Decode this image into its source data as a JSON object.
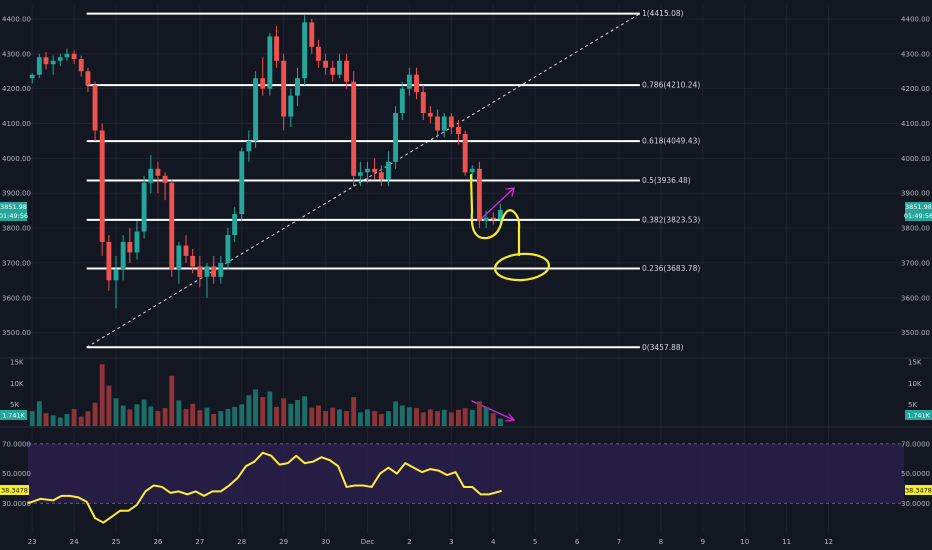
{
  "colors": {
    "background": "#131722",
    "grid": "#1e2230",
    "up": "#26a69a",
    "down": "#ef5350",
    "up_volume": "#1d6e68",
    "down_volume": "#8e3438",
    "fib_line": "#ffffff",
    "rsi_line": "#ffeb3b",
    "rsi_band": "#2a1e4a",
    "annotation_yellow": "#f5eb2a",
    "annotation_magenta": "#d42cd8"
  },
  "price_tag": {
    "price": "3851.98",
    "countdown": "01:49:56"
  },
  "volume_tag": "1.741K",
  "rsi_tag": "38.3478",
  "chart_data": [
    {
      "type": "candlestick",
      "ylim": [
        3430,
        4440
      ],
      "yticks": [
        "4400.00",
        "4300.00",
        "4200.00",
        "4100.00",
        "4000.00",
        "3900.00",
        "3800.00",
        "3700.00",
        "3600.00",
        "3500.00"
      ],
      "ytick_values": [
        4400,
        4300,
        4200,
        4100,
        4000,
        3900,
        3800,
        3700,
        3600,
        3500
      ],
      "xticks": [
        "23",
        "24",
        "25",
        "26",
        "27",
        "28",
        "29",
        "30",
        "Dec",
        "2",
        "3",
        "4",
        "5",
        "6",
        "7",
        "8",
        "9",
        "10",
        "11",
        "12"
      ],
      "xtick_days": [
        23,
        24,
        25,
        26,
        27,
        28,
        29,
        30,
        31,
        32,
        33,
        34,
        35,
        36,
        37,
        38,
        39,
        40,
        41,
        42
      ],
      "x_range_days": [
        22.9,
        43.8
      ],
      "candle_hours": 4,
      "fib_levels": [
        {
          "ratio": 1,
          "price": 4415.08,
          "label": "1(4415.08)"
        },
        {
          "ratio": 0.786,
          "price": 4210.24,
          "label": "0.786(4210.24)"
        },
        {
          "ratio": 0.618,
          "price": 4049.43,
          "label": "0.618(4049.43)"
        },
        {
          "ratio": 0.5,
          "price": 3936.48,
          "label": "0.5(3936.48)"
        },
        {
          "ratio": 0.382,
          "price": 3823.53,
          "label": "0.382(3823.53)"
        },
        {
          "ratio": 0.236,
          "price": 3683.78,
          "label": "0.236(3683.78)"
        },
        {
          "ratio": 0,
          "price": 3457.88,
          "label": "0(3457.88)"
        }
      ],
      "fib_trend": {
        "from": {
          "day": 24.3,
          "price": 3457.88
        },
        "to": {
          "day": 37.5,
          "price": 4415.08
        }
      },
      "candles": [
        [
          23.0,
          4230,
          4245,
          4215,
          4240
        ],
        [
          23.17,
          4240,
          4300,
          4230,
          4290
        ],
        [
          23.33,
          4290,
          4305,
          4255,
          4270
        ],
        [
          23.5,
          4270,
          4295,
          4240,
          4280
        ],
        [
          23.67,
          4280,
          4300,
          4265,
          4290
        ],
        [
          23.83,
          4290,
          4315,
          4280,
          4300
        ],
        [
          24.0,
          4300,
          4310,
          4270,
          4285
        ],
        [
          24.17,
          4285,
          4295,
          4235,
          4250
        ],
        [
          24.33,
          4250,
          4260,
          4190,
          4210
        ],
        [
          24.5,
          4210,
          4220,
          4050,
          4080
        ],
        [
          24.67,
          4080,
          4100,
          3720,
          3760
        ],
        [
          24.83,
          3760,
          3780,
          3620,
          3650
        ],
        [
          25.0,
          3650,
          3720,
          3570,
          3680
        ],
        [
          25.17,
          3680,
          3780,
          3650,
          3760
        ],
        [
          25.33,
          3760,
          3800,
          3700,
          3730
        ],
        [
          25.5,
          3730,
          3820,
          3710,
          3790
        ],
        [
          25.67,
          3790,
          3950,
          3770,
          3930
        ],
        [
          25.83,
          3930,
          4010,
          3900,
          3970
        ],
        [
          26.0,
          3970,
          3990,
          3900,
          3950
        ],
        [
          26.17,
          3950,
          3960,
          3880,
          3930
        ],
        [
          26.33,
          3930,
          3940,
          3660,
          3680
        ],
        [
          26.5,
          3680,
          3760,
          3640,
          3750
        ],
        [
          26.67,
          3750,
          3780,
          3700,
          3720
        ],
        [
          26.83,
          3720,
          3740,
          3670,
          3690
        ],
        [
          27.0,
          3690,
          3720,
          3630,
          3660
        ],
        [
          27.17,
          3660,
          3700,
          3600,
          3690
        ],
        [
          27.33,
          3690,
          3720,
          3640,
          3660
        ],
        [
          27.5,
          3660,
          3720,
          3640,
          3700
        ],
        [
          27.67,
          3700,
          3800,
          3680,
          3780
        ],
        [
          27.83,
          3780,
          3860,
          3760,
          3840
        ],
        [
          28.0,
          3840,
          4030,
          3820,
          4020
        ],
        [
          28.17,
          4020,
          4080,
          3990,
          4050
        ],
        [
          28.33,
          4050,
          4250,
          4030,
          4230
        ],
        [
          28.5,
          4230,
          4290,
          4180,
          4200
        ],
        [
          28.67,
          4200,
          4360,
          4180,
          4350
        ],
        [
          28.83,
          4350,
          4380,
          4260,
          4280
        ],
        [
          29.0,
          4280,
          4300,
          4080,
          4120
        ],
        [
          29.17,
          4120,
          4200,
          4090,
          4180
        ],
        [
          29.33,
          4180,
          4260,
          4150,
          4230
        ],
        [
          29.5,
          4230,
          4410,
          4210,
          4390
        ],
        [
          29.67,
          4390,
          4400,
          4300,
          4320
        ],
        [
          29.83,
          4320,
          4340,
          4260,
          4280
        ],
        [
          30.0,
          4280,
          4300,
          4240,
          4260
        ],
        [
          30.17,
          4260,
          4280,
          4220,
          4240
        ],
        [
          30.33,
          4240,
          4300,
          4230,
          4280
        ],
        [
          30.5,
          4280,
          4300,
          4200,
          4220
        ],
        [
          30.67,
          4220,
          4250,
          3920,
          3950
        ],
        [
          30.83,
          3950,
          3990,
          3920,
          3960
        ],
        [
          31.0,
          3960,
          3990,
          3930,
          3970
        ],
        [
          31.17,
          3970,
          4000,
          3940,
          3960
        ],
        [
          31.33,
          3960,
          3980,
          3920,
          3940
        ],
        [
          31.5,
          3940,
          4020,
          3920,
          3990
        ],
        [
          31.67,
          3990,
          4150,
          3970,
          4130
        ],
        [
          31.83,
          4130,
          4220,
          4110,
          4200
        ],
        [
          32.0,
          4200,
          4260,
          4180,
          4240
        ],
        [
          32.17,
          4240,
          4260,
          4170,
          4190
        ],
        [
          32.33,
          4190,
          4210,
          4110,
          4130
        ],
        [
          32.5,
          4130,
          4150,
          4100,
          4120
        ],
        [
          32.67,
          4120,
          4140,
          4060,
          4080
        ],
        [
          32.83,
          4080,
          4130,
          4060,
          4120
        ],
        [
          33.0,
          4120,
          4130,
          4070,
          4090
        ],
        [
          33.17,
          4090,
          4110,
          4040,
          4070
        ],
        [
          33.33,
          4070,
          4080,
          3950,
          3960
        ],
        [
          33.5,
          3960,
          3980,
          3940,
          3970
        ],
        [
          33.67,
          3970,
          3990,
          3800,
          3820
        ],
        [
          33.83,
          3820,
          3850,
          3800,
          3830
        ],
        [
          34.0,
          3830,
          3845,
          3810,
          3825
        ],
        [
          34.17,
          3825,
          3870,
          3815,
          3852
        ]
      ]
    },
    {
      "type": "bar",
      "name": "Volume",
      "ylim": [
        0,
        15500
      ],
      "yticks": [
        "15K",
        "10K",
        "5K"
      ],
      "ytick_values": [
        15000,
        10000,
        5000
      ],
      "values": [
        3500,
        5800,
        3000,
        2500,
        2000,
        2800,
        4000,
        2200,
        3500,
        5500,
        14500,
        9500,
        6500,
        4800,
        3900,
        5100,
        6200,
        4600,
        3500,
        4200,
        11800,
        6000,
        4000,
        5200,
        3700,
        4300,
        2800,
        3500,
        4000,
        4500,
        5100,
        7200,
        8600,
        6800,
        8100,
        4500,
        6500,
        5200,
        6100,
        7000,
        4300,
        4800,
        3500,
        4300,
        3900,
        3500,
        6800,
        3200,
        3900,
        3500,
        2800,
        3500,
        5800,
        4800,
        4400,
        4200,
        3200,
        3900,
        3500,
        3800,
        3200,
        3800,
        4200,
        3800,
        5800,
        4400,
        3000,
        1741
      ]
    },
    {
      "type": "line",
      "name": "RSI",
      "ylim": [
        10,
        80
      ],
      "yticks": [
        "70.0000",
        "50.0000",
        "30.0000"
      ],
      "ytick_values": [
        70,
        50,
        30
      ],
      "bands": [
        70,
        30
      ],
      "x": [
        22.9,
        23.2,
        23.5,
        23.7,
        23.9,
        24.1,
        24.3,
        24.5,
        24.7,
        24.9,
        25.1,
        25.3,
        25.5,
        25.7,
        25.9,
        26.1,
        26.3,
        26.5,
        26.7,
        26.9,
        27.1,
        27.3,
        27.5,
        27.7,
        27.9,
        28.1,
        28.3,
        28.5,
        28.7,
        28.9,
        29.1,
        29.3,
        29.5,
        29.7,
        29.9,
        30.1,
        30.3,
        30.5,
        30.7,
        30.9,
        31.1,
        31.3,
        31.5,
        31.7,
        31.9,
        32.1,
        32.3,
        32.5,
        32.7,
        32.9,
        33.1,
        33.3,
        33.5,
        33.7,
        33.9,
        34.2
      ],
      "values": [
        30,
        33,
        32,
        35,
        35,
        34,
        31,
        20,
        17,
        21,
        25,
        25,
        29,
        38,
        42,
        41,
        37,
        38,
        36,
        38,
        35,
        38,
        38,
        42,
        47,
        55,
        58,
        64,
        62,
        56,
        57,
        62,
        57,
        58,
        61,
        59,
        55,
        41,
        42,
        42,
        41,
        50,
        54,
        50,
        57,
        54,
        51,
        53,
        52,
        49,
        51,
        41,
        41,
        36,
        36,
        38.35
      ]
    }
  ]
}
